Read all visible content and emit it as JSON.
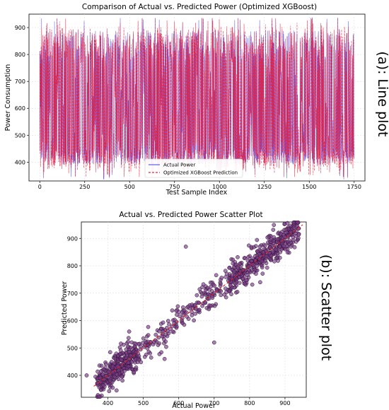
{
  "chart_data": [
    {
      "type": "line",
      "title": "Comparison of Actual vs. Predicted Power (Optimized XGBoost)",
      "xlabel": "Test Sample Index",
      "ylabel": "Power Consumption",
      "side_label": "(a): Line plot",
      "xlim": [
        -60,
        1810
      ],
      "ylim": [
        330,
        950
      ],
      "xticks": [
        0,
        250,
        500,
        750,
        1000,
        1250,
        1500,
        1750
      ],
      "yticks": [
        400,
        500,
        600,
        700,
        800,
        900
      ],
      "grid": true,
      "legend_position": "bottom-center",
      "n_samples": 1750,
      "value_range": [
        335,
        940
      ],
      "series": [
        {
          "name": "Actual Power",
          "color": "#5b5bf5",
          "style": "solid"
        },
        {
          "name": "Optimized XGBoost Prediction",
          "color": "#e8233f",
          "style": "dashed"
        }
      ]
    },
    {
      "type": "scatter",
      "title": "Actual vs. Predicted Power Scatter Plot",
      "xlabel": "Actual Power",
      "ylabel": "Predicted Power",
      "side_label": "(b): Scatter plot",
      "xlim": [
        325,
        960
      ],
      "ylim": [
        320,
        960
      ],
      "xticks": [
        400,
        500,
        600,
        700,
        800,
        900
      ],
      "yticks": [
        400,
        500,
        600,
        700,
        800,
        900
      ],
      "grid": true,
      "point_color": "#7a3b86",
      "point_edge": "#2a1230",
      "n_points": 1750,
      "approx_fit": "predicted ≈ actual",
      "reference_line": {
        "x": [
          360,
          950
        ],
        "y": [
          360,
          950
        ],
        "color": "#e02020",
        "style": "dashed"
      },
      "outliers": [
        [
          340,
          400
        ],
        [
          365,
          395
        ],
        [
          620,
          870
        ],
        [
          700,
          520
        ],
        [
          560,
          460
        ],
        [
          830,
          740
        ],
        [
          460,
          560
        ]
      ]
    }
  ]
}
